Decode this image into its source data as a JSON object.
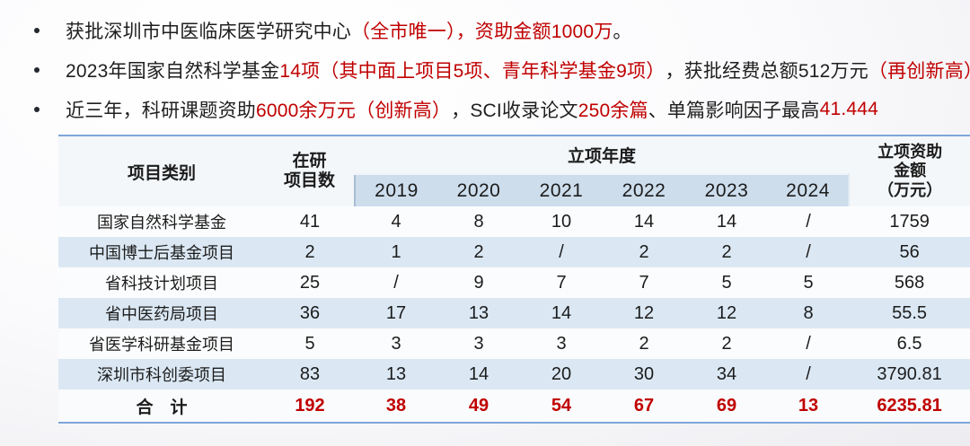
{
  "bullets": [
    {
      "segments": [
        {
          "text": "获批深圳市中医临床医学研究中心",
          "color": "dark"
        },
        {
          "text": "（全市唯一），资助金额1000万",
          "color": "red"
        },
        {
          "text": "。",
          "color": "dark"
        }
      ]
    },
    {
      "segments": [
        {
          "text": "2023年国家自然科学基金",
          "color": "dark"
        },
        {
          "text": "14项（其中面上项目5项、青年科学基金9项）",
          "color": "red"
        },
        {
          "text": "，获批经费总额512万元",
          "color": "dark"
        },
        {
          "text": "（再创新高）",
          "color": "red"
        }
      ]
    },
    {
      "segments": [
        {
          "text": "近三年，科研课题资助",
          "color": "dark"
        },
        {
          "text": "6000余万元（创新高）",
          "color": "red"
        },
        {
          "text": "，SCI收录论文",
          "color": "dark"
        },
        {
          "text": "250余篇",
          "color": "red"
        },
        {
          "text": "、单篇影响因子最高",
          "color": "dark"
        },
        {
          "text": "41.444",
          "color": "red"
        }
      ]
    }
  ],
  "table": {
    "headers": {
      "category": "项目类别",
      "ongoing": "在研\n项目数",
      "year_group": "立项年度",
      "years": [
        "2019",
        "2020",
        "2021",
        "2022",
        "2023",
        "2024"
      ],
      "funding": "立项资助\n金额\n（万元）"
    },
    "rows": [
      {
        "category": "国家自然科学基金",
        "ongoing": "41",
        "years": [
          "4",
          "8",
          "10",
          "14",
          "14",
          "/"
        ],
        "funding": "1759"
      },
      {
        "category": "中国博士后基金项目",
        "ongoing": "2",
        "years": [
          "1",
          "2",
          "/",
          "2",
          "2",
          "/"
        ],
        "funding": "56"
      },
      {
        "category": "省科技计划项目",
        "ongoing": "25",
        "years": [
          "/",
          "9",
          "7",
          "7",
          "5",
          "5"
        ],
        "funding": "568"
      },
      {
        "category": "省中医药局项目",
        "ongoing": "36",
        "years": [
          "17",
          "13",
          "14",
          "12",
          "12",
          "8"
        ],
        "funding": "55.5"
      },
      {
        "category": "省医学科研基金项目",
        "ongoing": "5",
        "years": [
          "3",
          "3",
          "3",
          "2",
          "2",
          "/"
        ],
        "funding": "6.5"
      },
      {
        "category": "深圳市科创委项目",
        "ongoing": "83",
        "years": [
          "13",
          "14",
          "20",
          "30",
          "34",
          "/"
        ],
        "funding": "3790.81"
      }
    ],
    "total": {
      "category": "合　计",
      "ongoing": "192",
      "years": [
        "38",
        "49",
        "54",
        "67",
        "69",
        "13"
      ],
      "funding": "6235.81"
    }
  },
  "colors": {
    "accent_red": "#c00000",
    "table_line_blue": "#7da7d9",
    "stripe_blue": "#dbe8f4",
    "year_band_blue": "#cdddec"
  }
}
